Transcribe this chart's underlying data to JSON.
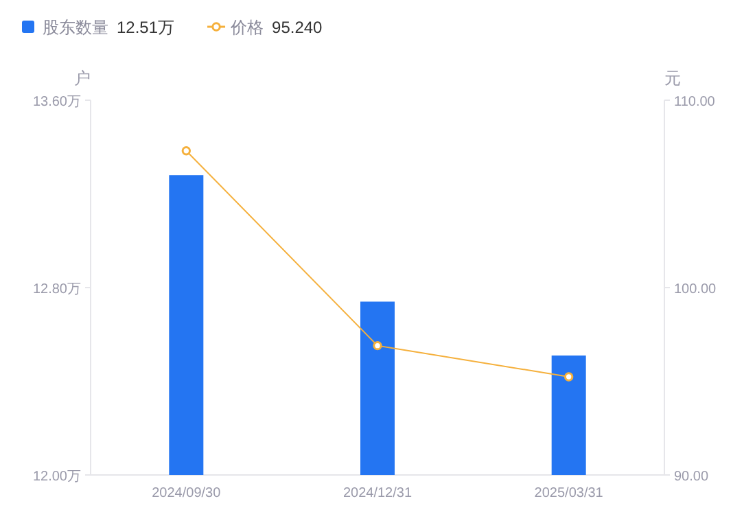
{
  "chart_data": {
    "type": "bar",
    "categories": [
      "2024/09/30",
      "2024/12/31",
      "2025/03/31"
    ],
    "series": [
      {
        "name": "股东数量",
        "color": "#2475f2",
        "values": [
          13.28,
          12.74,
          12.51
        ]
      },
      {
        "name": "价格",
        "type": "line",
        "axis": "y2",
        "color": "#f5b03c",
        "marker": "circle",
        "values": [
          107.3,
          96.9,
          95.24
        ]
      }
    ],
    "ylabel": "户",
    "y2label": "元",
    "ylim": [
      12.0,
      13.6
    ],
    "yticks": [
      {
        "value": 12.0,
        "label": "12.00万"
      },
      {
        "value": 12.8,
        "label": "12.80万"
      },
      {
        "value": 13.6,
        "label": "13.60万"
      }
    ],
    "y2lim": [
      90,
      110
    ],
    "y2ticks": [
      {
        "value": 90,
        "label": "90.00"
      },
      {
        "value": 100,
        "label": "100.00"
      },
      {
        "value": 110,
        "label": "110.00"
      }
    ],
    "annotations": [
      "12.51万",
      "95.240"
    ],
    "legend": "top left",
    "grid": false
  }
}
